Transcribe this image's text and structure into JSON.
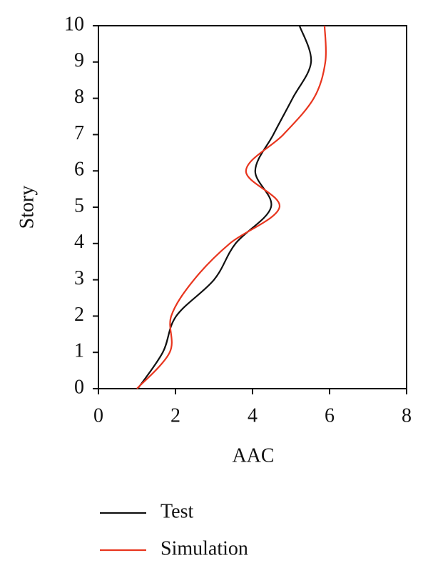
{
  "chart_data": {
    "type": "line",
    "orientation": "horizontal",
    "y_label": "Story",
    "x_label": "AAC",
    "y": [
      0,
      1,
      2,
      3,
      4,
      5,
      6,
      7,
      8,
      9,
      10
    ],
    "series": [
      {
        "name": "Test",
        "color": "#111111",
        "values": [
          1.02,
          1.67,
          2.02,
          3.0,
          3.56,
          4.48,
          4.07,
          4.54,
          5.04,
          5.52,
          5.22
        ]
      },
      {
        "name": "Simulation",
        "color": "#e8351e",
        "values": [
          1.0,
          1.85,
          1.89,
          2.48,
          3.41,
          4.7,
          3.83,
          4.8,
          5.59,
          5.89,
          5.87
        ]
      }
    ],
    "xlim": [
      0,
      8
    ],
    "xticks": [
      0,
      2,
      4,
      6,
      8
    ],
    "ylim": [
      0,
      10
    ],
    "yticks": [
      0,
      1,
      2,
      3,
      4,
      5,
      6,
      7,
      8,
      9,
      10
    ],
    "smooth": true,
    "legend": "bottom"
  }
}
